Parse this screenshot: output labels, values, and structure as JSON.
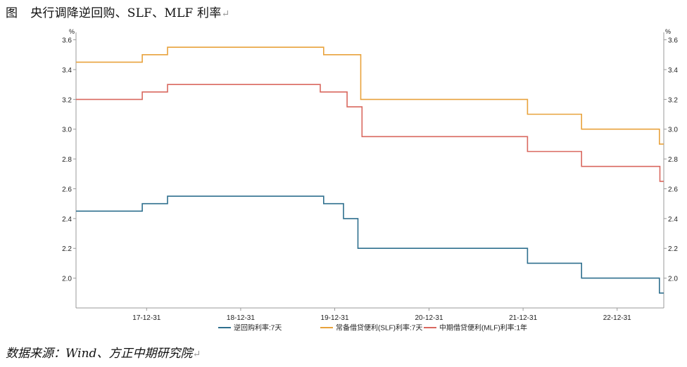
{
  "title": {
    "label": "图",
    "text": "央行调降逆回购、SLF、MLF 利率"
  },
  "source": {
    "text": "数据来源：Wind、方正中期研究院"
  },
  "return_mark": "↵",
  "chart_data": {
    "type": "line",
    "step": true,
    "y_unit_left": "%",
    "y_unit_right": "%",
    "ylim": [
      1.8,
      3.65
    ],
    "yticks": [
      2.0,
      2.2,
      2.4,
      2.6,
      2.8,
      3.0,
      3.2,
      3.4,
      3.6
    ],
    "xticks": [
      "17-12-31",
      "18-12-31",
      "19-12-31",
      "20-12-31",
      "21-12-31",
      "22-12-31"
    ],
    "xlim": [
      "2017-04-01",
      "2023-06-30"
    ],
    "grid": false,
    "legend_position": "bottom",
    "colors": {
      "axis": "#999999"
    },
    "series": [
      {
        "name": "逆回购利率:7天",
        "color": "#2e6f8e",
        "points": [
          [
            "2017-04-01",
            2.45
          ],
          [
            "2017-12-14",
            2.5
          ],
          [
            "2018-03-22",
            2.55
          ],
          [
            "2019-11-18",
            2.5
          ],
          [
            "2020-02-03",
            2.4
          ],
          [
            "2020-03-30",
            2.2
          ],
          [
            "2022-01-17",
            2.1
          ],
          [
            "2022-08-15",
            2.0
          ],
          [
            "2023-06-13",
            1.9
          ]
        ]
      },
      {
        "name": "常备借贷便利(SLF)利率:7天",
        "color": "#e8a23c",
        "points": [
          [
            "2017-04-01",
            3.45
          ],
          [
            "2017-12-14",
            3.5
          ],
          [
            "2018-03-22",
            3.55
          ],
          [
            "2019-11-18",
            3.5
          ],
          [
            "2020-04-10",
            3.2
          ],
          [
            "2022-01-17",
            3.1
          ],
          [
            "2022-08-15",
            3.0
          ],
          [
            "2023-06-13",
            2.9
          ]
        ]
      },
      {
        "name": "中期借贷便利(MLF)利率:1年",
        "color": "#d9685f",
        "points": [
          [
            "2017-04-01",
            3.2
          ],
          [
            "2017-12-14",
            3.25
          ],
          [
            "2018-03-22",
            3.3
          ],
          [
            "2019-11-05",
            3.25
          ],
          [
            "2020-02-17",
            3.15
          ],
          [
            "2020-04-15",
            2.95
          ],
          [
            "2022-01-17",
            2.85
          ],
          [
            "2022-08-15",
            2.75
          ],
          [
            "2023-06-15",
            2.65
          ]
        ]
      }
    ]
  }
}
